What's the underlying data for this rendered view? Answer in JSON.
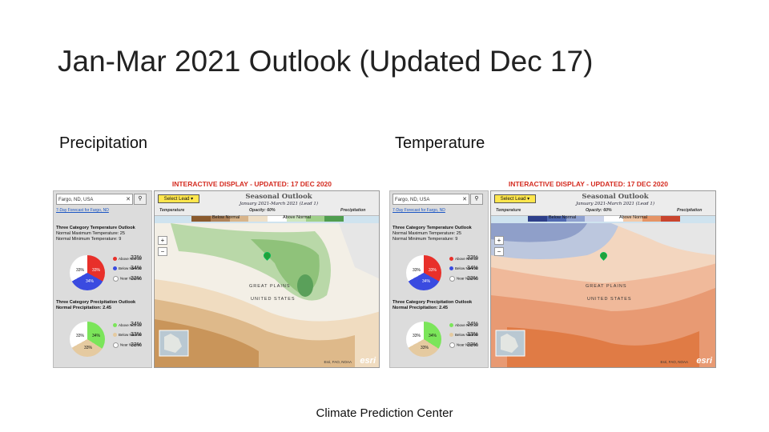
{
  "slide": {
    "title": "Jan-Mar 2021 Outlook (Updated Dec 17)",
    "precip_label": "Precipitation",
    "temp_label": "Temperature",
    "footer": "Climate Prediction Center"
  },
  "left_app": {
    "banner": "INTERACTIVE DISPLAY - UPDATED: 17 DEC 2020",
    "search_value": "Fargo, ND, USA",
    "link": "7-Day Forecast for Fargo, ND",
    "temp_title": "Three Category Temperature Outlook",
    "temp_max": "Normal Maximum Temperature: 25",
    "temp_min": "Normal Minimum Temperature: 9",
    "temp_pcts": [
      "33%",
      "34%",
      "33%"
    ],
    "temp_pie_labels": [
      "33%",
      "33%",
      "34%"
    ],
    "precip_title": "Three Category Precipitation Outlook",
    "precip_normal": "Normal Precipitation: 2.45",
    "precip_pcts": [
      "34%",
      "33%",
      "33%"
    ],
    "precip_pie_labels": [
      "33%",
      "34%",
      "33%"
    ],
    "legend_items": [
      "Above Normal",
      "Below Normal",
      "Near Normal"
    ],
    "select_lead": "Select Lead",
    "map_title": "Seasonal Outlook",
    "map_subtitle": "January 2021-March 2021 (Lead 1)",
    "ctrl_temperature": "Temperature",
    "ctrl_outlook": "Outlook",
    "ctrl_opacity": "Opacity: 60%",
    "ctrl_precipitation": "Precipitation",
    "below_label": "Below Normal",
    "above_label": "Above Normal",
    "great_plains": "GREAT PLAINS",
    "united_states": "UNITED STATES",
    "credit": "Esri, FAO, NOAA",
    "esri": "esri"
  },
  "right_app": {
    "banner": "INTERACTIVE DISPLAY - UPDATED: 17 DEC 2020",
    "search_value": "Fargo, ND, USA",
    "link": "7-Day Forecast for Fargo, ND",
    "temp_title": "Three Category Temperature Outlook",
    "temp_max": "Normal Maximum Temperature: 25",
    "temp_min": "Normal Minimum Temperature: 9",
    "temp_pcts": [
      "33%",
      "34%",
      "33%"
    ],
    "temp_pie_labels": [
      "33%",
      "33%",
      "34%"
    ],
    "precip_title": "Three Category Precipitation Outlook",
    "precip_normal": "Normal Precipitation: 2.45",
    "precip_pcts": [
      "34%",
      "33%",
      "33%"
    ],
    "precip_pie_labels": [
      "33%",
      "34%",
      "33%"
    ],
    "legend_items": [
      "Above Normal",
      "Below Normal",
      "Near Normal"
    ],
    "select_lead": "Select Lead",
    "map_title": "Seasonal Outlook",
    "map_subtitle": "January 2021-March 2021 (Lead 1)",
    "ctrl_temperature": "Temperature",
    "ctrl_outlook": "Outlook",
    "ctrl_opacity": "Opacity: 60%",
    "ctrl_precipitation": "Precipitation",
    "below_label": "Below Normal",
    "above_label": "Above Normal",
    "great_plains": "GREAT PLAINS",
    "united_states": "UNITED STATES",
    "credit": "Esri, FAO, NOAA",
    "esri": "esri"
  },
  "colors": {
    "banner_red": "#d42b20",
    "precip_brown": "#c9955a",
    "precip_green": "#5aa05a",
    "temp_blue": "#5b7fb8",
    "temp_orange": "#e07b45",
    "select_yellow": "#ffe64d"
  }
}
